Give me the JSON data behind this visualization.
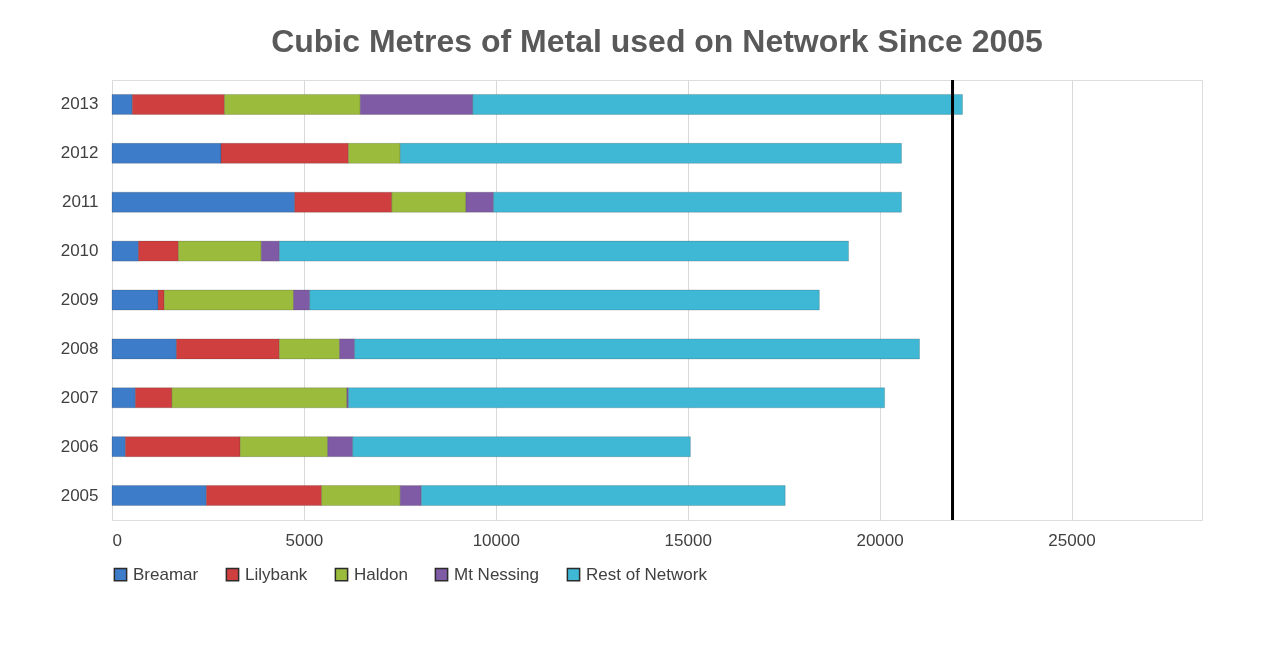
{
  "chart_data": {
    "type": "bar",
    "orientation": "horizontal",
    "stacked": true,
    "title": "Cubic Metres of Metal used on Network Since 2005",
    "categories": [
      "2013",
      "2012",
      "2011",
      "2010",
      "2009",
      "2008",
      "2007",
      "2006",
      "2005"
    ],
    "series": [
      {
        "name": "Breamar",
        "color": "#3d7cc9",
        "values": [
          530,
          2840,
          4760,
          690,
          1200,
          1680,
          610,
          350,
          2460
        ]
      },
      {
        "name": "Lilybank",
        "color": "#d03f3f",
        "values": [
          2400,
          3320,
          2530,
          1040,
          160,
          2680,
          950,
          2990,
          3000
        ]
      },
      {
        "name": "Haldon",
        "color": "#9bbb3c",
        "values": [
          3540,
          1350,
          1930,
          2160,
          3370,
          1570,
          4560,
          2280,
          2050
        ]
      },
      {
        "name": "Mt Nessing",
        "color": "#7f5ba6",
        "values": [
          2930,
          null,
          720,
          470,
          420,
          390,
          40,
          650,
          550
        ]
      },
      {
        "name": "Rest of Network",
        "color": "#3fb8d6",
        "values": [
          12760,
          13060,
          10630,
          14830,
          13280,
          14720,
          13970,
          8800,
          9480
        ]
      }
    ],
    "xlim": [
      0,
      28400
    ],
    "xticks": [
      0,
      5000,
      10000,
      15000,
      20000,
      25000
    ],
    "ref_lines": [
      {
        "axis": "x",
        "value": 21900,
        "color": "#000000"
      }
    ],
    "grid": "x",
    "legend": "bottom"
  }
}
